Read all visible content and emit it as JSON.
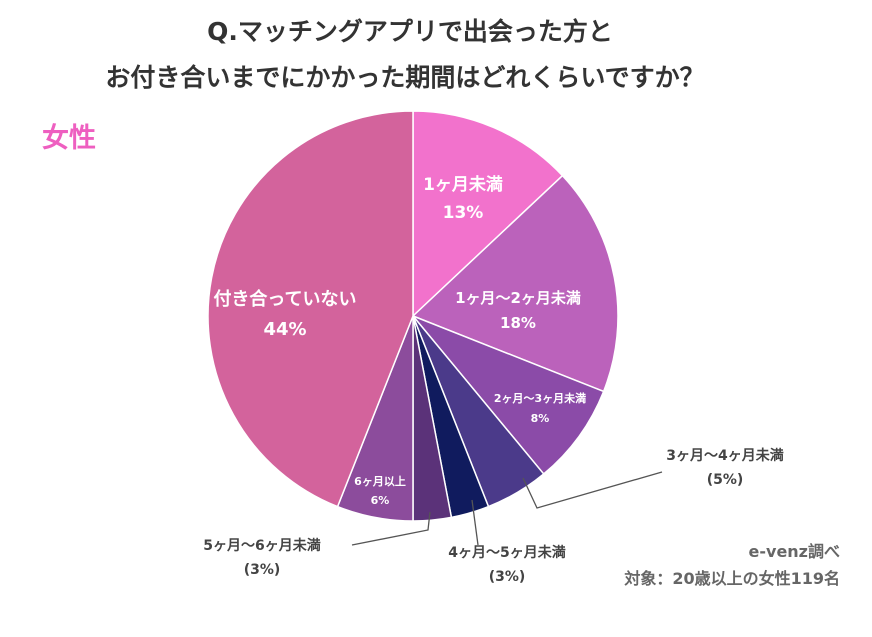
{
  "chart_data": {
    "type": "pie",
    "title_line1": "Q.マッチングアプリで出会った方と",
    "title_line2": "お付き合いまでにかかった期間はどれくらいですか？",
    "subtitle": "女性",
    "slices": [
      {
        "label": "1ヶ月未満",
        "value": 13,
        "value_label": "13%",
        "color": "#f272cc"
      },
      {
        "label": "1ヶ月〜2ヶ月未満",
        "value": 18,
        "value_label": "18%",
        "color": "#bb62bb"
      },
      {
        "label": "2ヶ月〜3ヶ月未満",
        "value": 8,
        "value_label": "8%",
        "color": "#8b4ba8"
      },
      {
        "label": "3ヶ月〜4ヶ月未満",
        "value": 5,
        "value_label": "(5%)",
        "color": "#4b3a8a"
      },
      {
        "label": "4ヶ月〜5ヶ月未満",
        "value": 3,
        "value_label": "(3%)",
        "color": "#101b5e"
      },
      {
        "label": "5ヶ月〜6ヶ月未満",
        "value": 3,
        "value_label": "(3%)",
        "color": "#5b3279"
      },
      {
        "label": "6ヶ月以上",
        "value": 6,
        "value_label": "6%",
        "color": "#8c4c9c"
      },
      {
        "label": "付き合っていない",
        "value": 44,
        "value_label": "44%",
        "color": "#d3639c"
      }
    ],
    "source": "e-venz調べ",
    "note": "対象：20歳以上の女性119名"
  }
}
